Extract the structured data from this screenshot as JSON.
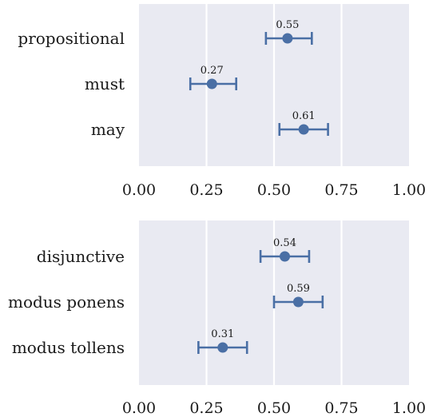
{
  "colors": {
    "panel": "#e9eaf2",
    "grid": "#ffffff",
    "series": "#4a6fa5"
  },
  "chart_data": [
    {
      "type": "scatter",
      "orientation": "horizontal",
      "title": "",
      "xlabel": "",
      "ylabel": "",
      "xlim": [
        0.0,
        1.0
      ],
      "x_ticks": [
        "0.00",
        "0.25",
        "0.50",
        "0.75",
        "1.00"
      ],
      "grid": true,
      "categories": [
        "propositional",
        "must",
        "may"
      ],
      "series": [
        {
          "values": [
            0.55,
            0.27,
            0.61
          ],
          "labels": [
            "0.55",
            "0.27",
            "0.61"
          ],
          "ci_low": [
            0.47,
            0.19,
            0.52
          ],
          "ci_high": [
            0.64,
            0.36,
            0.7
          ]
        }
      ]
    },
    {
      "type": "scatter",
      "orientation": "horizontal",
      "title": "",
      "xlabel": "",
      "ylabel": "",
      "xlim": [
        0.0,
        1.0
      ],
      "x_ticks": [
        "0.00",
        "0.25",
        "0.50",
        "0.75",
        "1.00"
      ],
      "grid": true,
      "categories": [
        "disjunctive",
        "modus ponens",
        "modus tollens"
      ],
      "series": [
        {
          "values": [
            0.54,
            0.59,
            0.31
          ],
          "labels": [
            "0.54",
            "0.59",
            "0.31"
          ],
          "ci_low": [
            0.45,
            0.5,
            0.22
          ],
          "ci_high": [
            0.63,
            0.68,
            0.4
          ]
        }
      ]
    }
  ]
}
